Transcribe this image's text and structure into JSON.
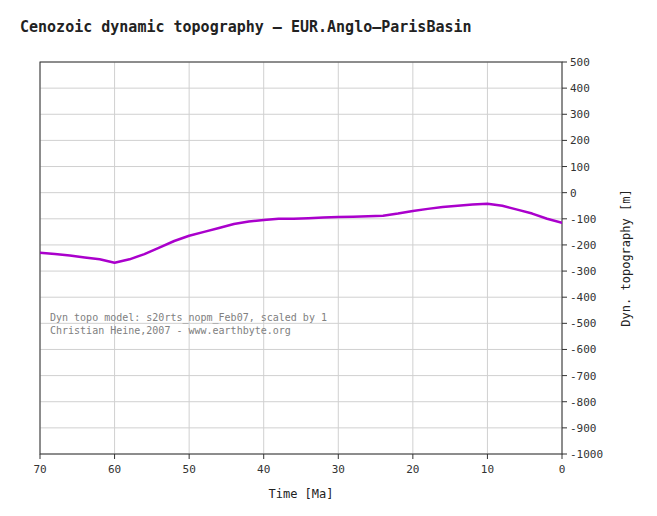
{
  "chart_data": {
    "type": "line",
    "title": "Cenozoic dynamic topography – EUR.Anglo–ParisBasin",
    "x_label": "Time [Ma]",
    "y_label": "Dyn. topography [m]",
    "annotations": [
      "Dyn topo model: s20rts_nopm_Feb07, scaled by 1",
      "Christian Heine,2007 - www.earthbyte.org"
    ],
    "x": [
      70,
      68,
      66,
      64,
      62,
      60,
      58,
      56,
      54,
      52,
      50,
      48,
      46,
      44,
      42,
      40,
      38,
      36,
      34,
      32,
      30,
      28,
      26,
      24,
      22,
      20,
      18,
      16,
      14,
      12,
      10,
      8,
      6,
      4,
      2,
      0
    ],
    "values": [
      -230,
      -235,
      -240,
      -248,
      -255,
      -268,
      -255,
      -235,
      -210,
      -185,
      -165,
      -150,
      -135,
      -120,
      -110,
      -105,
      -100,
      -100,
      -98,
      -95,
      -93,
      -92,
      -90,
      -88,
      -80,
      -70,
      -62,
      -55,
      -50,
      -45,
      -42,
      -50,
      -65,
      -80,
      -100,
      -115
    ],
    "color": "#aa00cc",
    "xlim": [
      70,
      0
    ],
    "ylim": [
      -1000,
      500
    ],
    "xticks": [
      70,
      60,
      50,
      40,
      30,
      20,
      10,
      0
    ],
    "yticks": [
      -1000,
      -900,
      -800,
      -700,
      -600,
      -500,
      -400,
      -300,
      -200,
      -100,
      0,
      100,
      200,
      300,
      400,
      500
    ],
    "grid": true
  }
}
